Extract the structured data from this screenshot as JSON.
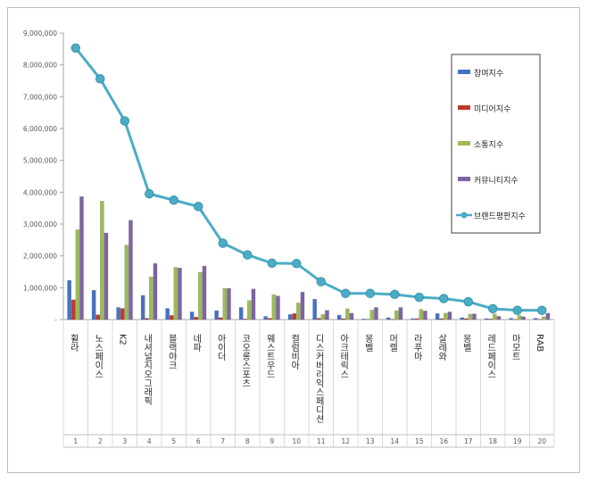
{
  "chart_data": {
    "type": "bar",
    "title": "",
    "xlabel": "",
    "ylabel": "",
    "ylim": [
      0,
      9000000
    ],
    "y_ticks": [
      "-",
      "1,000,000",
      "2,000,000",
      "3,000,000",
      "4,000,000",
      "5,000,000",
      "6,000,000",
      "7,000,000",
      "8,000,000",
      "9,000,000"
    ],
    "grid": false,
    "legend_position": "right",
    "categories": [
      "휠라",
      "노스페이스",
      "K2",
      "내셔널지오그래픽",
      "블랙야크",
      "네파",
      "아이더",
      "코오롱스포츠",
      "웨스트우드",
      "컬럼비아",
      "디스커버리익스페디션",
      "아크테릭스",
      "몽벨",
      "머렐",
      "라푸마",
      "살레와",
      "몽벨",
      "레드페이스",
      "마모트",
      "RAB"
    ],
    "ranks": [
      "1",
      "2",
      "3",
      "4",
      "5",
      "6",
      "7",
      "8",
      "9",
      "10",
      "11",
      "12",
      "13",
      "14",
      "15",
      "16",
      "17",
      "18",
      "19",
      "20"
    ],
    "series": [
      {
        "name": "참여지수",
        "type": "bar",
        "color": "#4472c4",
        "values": [
          1230000,
          920000,
          380000,
          760000,
          350000,
          240000,
          280000,
          380000,
          100000,
          160000,
          640000,
          140000,
          20000,
          60000,
          30000,
          190000,
          60000,
          30000,
          40000,
          40000
        ]
      },
      {
        "name": "미디어지수",
        "type": "bar",
        "color": "#c0392b",
        "values": [
          620000,
          150000,
          350000,
          40000,
          130000,
          80000,
          60000,
          20000,
          40000,
          190000,
          40000,
          30000,
          10000,
          10000,
          30000,
          30000,
          30000,
          20000,
          10000,
          10000
        ]
      },
      {
        "name": "소통지수",
        "type": "bar",
        "color": "#9bbb59",
        "values": [
          2820000,
          3720000,
          2340000,
          1340000,
          1640000,
          1480000,
          980000,
          600000,
          780000,
          520000,
          160000,
          340000,
          300000,
          280000,
          320000,
          200000,
          170000,
          180000,
          130000,
          90000
        ]
      },
      {
        "name": "커뮤니티지수",
        "type": "bar",
        "color": "#8064a2",
        "values": [
          3860000,
          2720000,
          3120000,
          1760000,
          1620000,
          1680000,
          980000,
          960000,
          740000,
          860000,
          290000,
          200000,
          380000,
          380000,
          270000,
          240000,
          180000,
          100000,
          90000,
          200000
        ]
      },
      {
        "name": "브랜드평판지수",
        "type": "line",
        "color": "#4bacc6",
        "values": [
          8530000,
          7560000,
          6240000,
          3950000,
          3750000,
          3550000,
          2400000,
          2030000,
          1770000,
          1760000,
          1190000,
          820000,
          820000,
          790000,
          700000,
          660000,
          560000,
          340000,
          290000,
          290000
        ]
      }
    ]
  }
}
